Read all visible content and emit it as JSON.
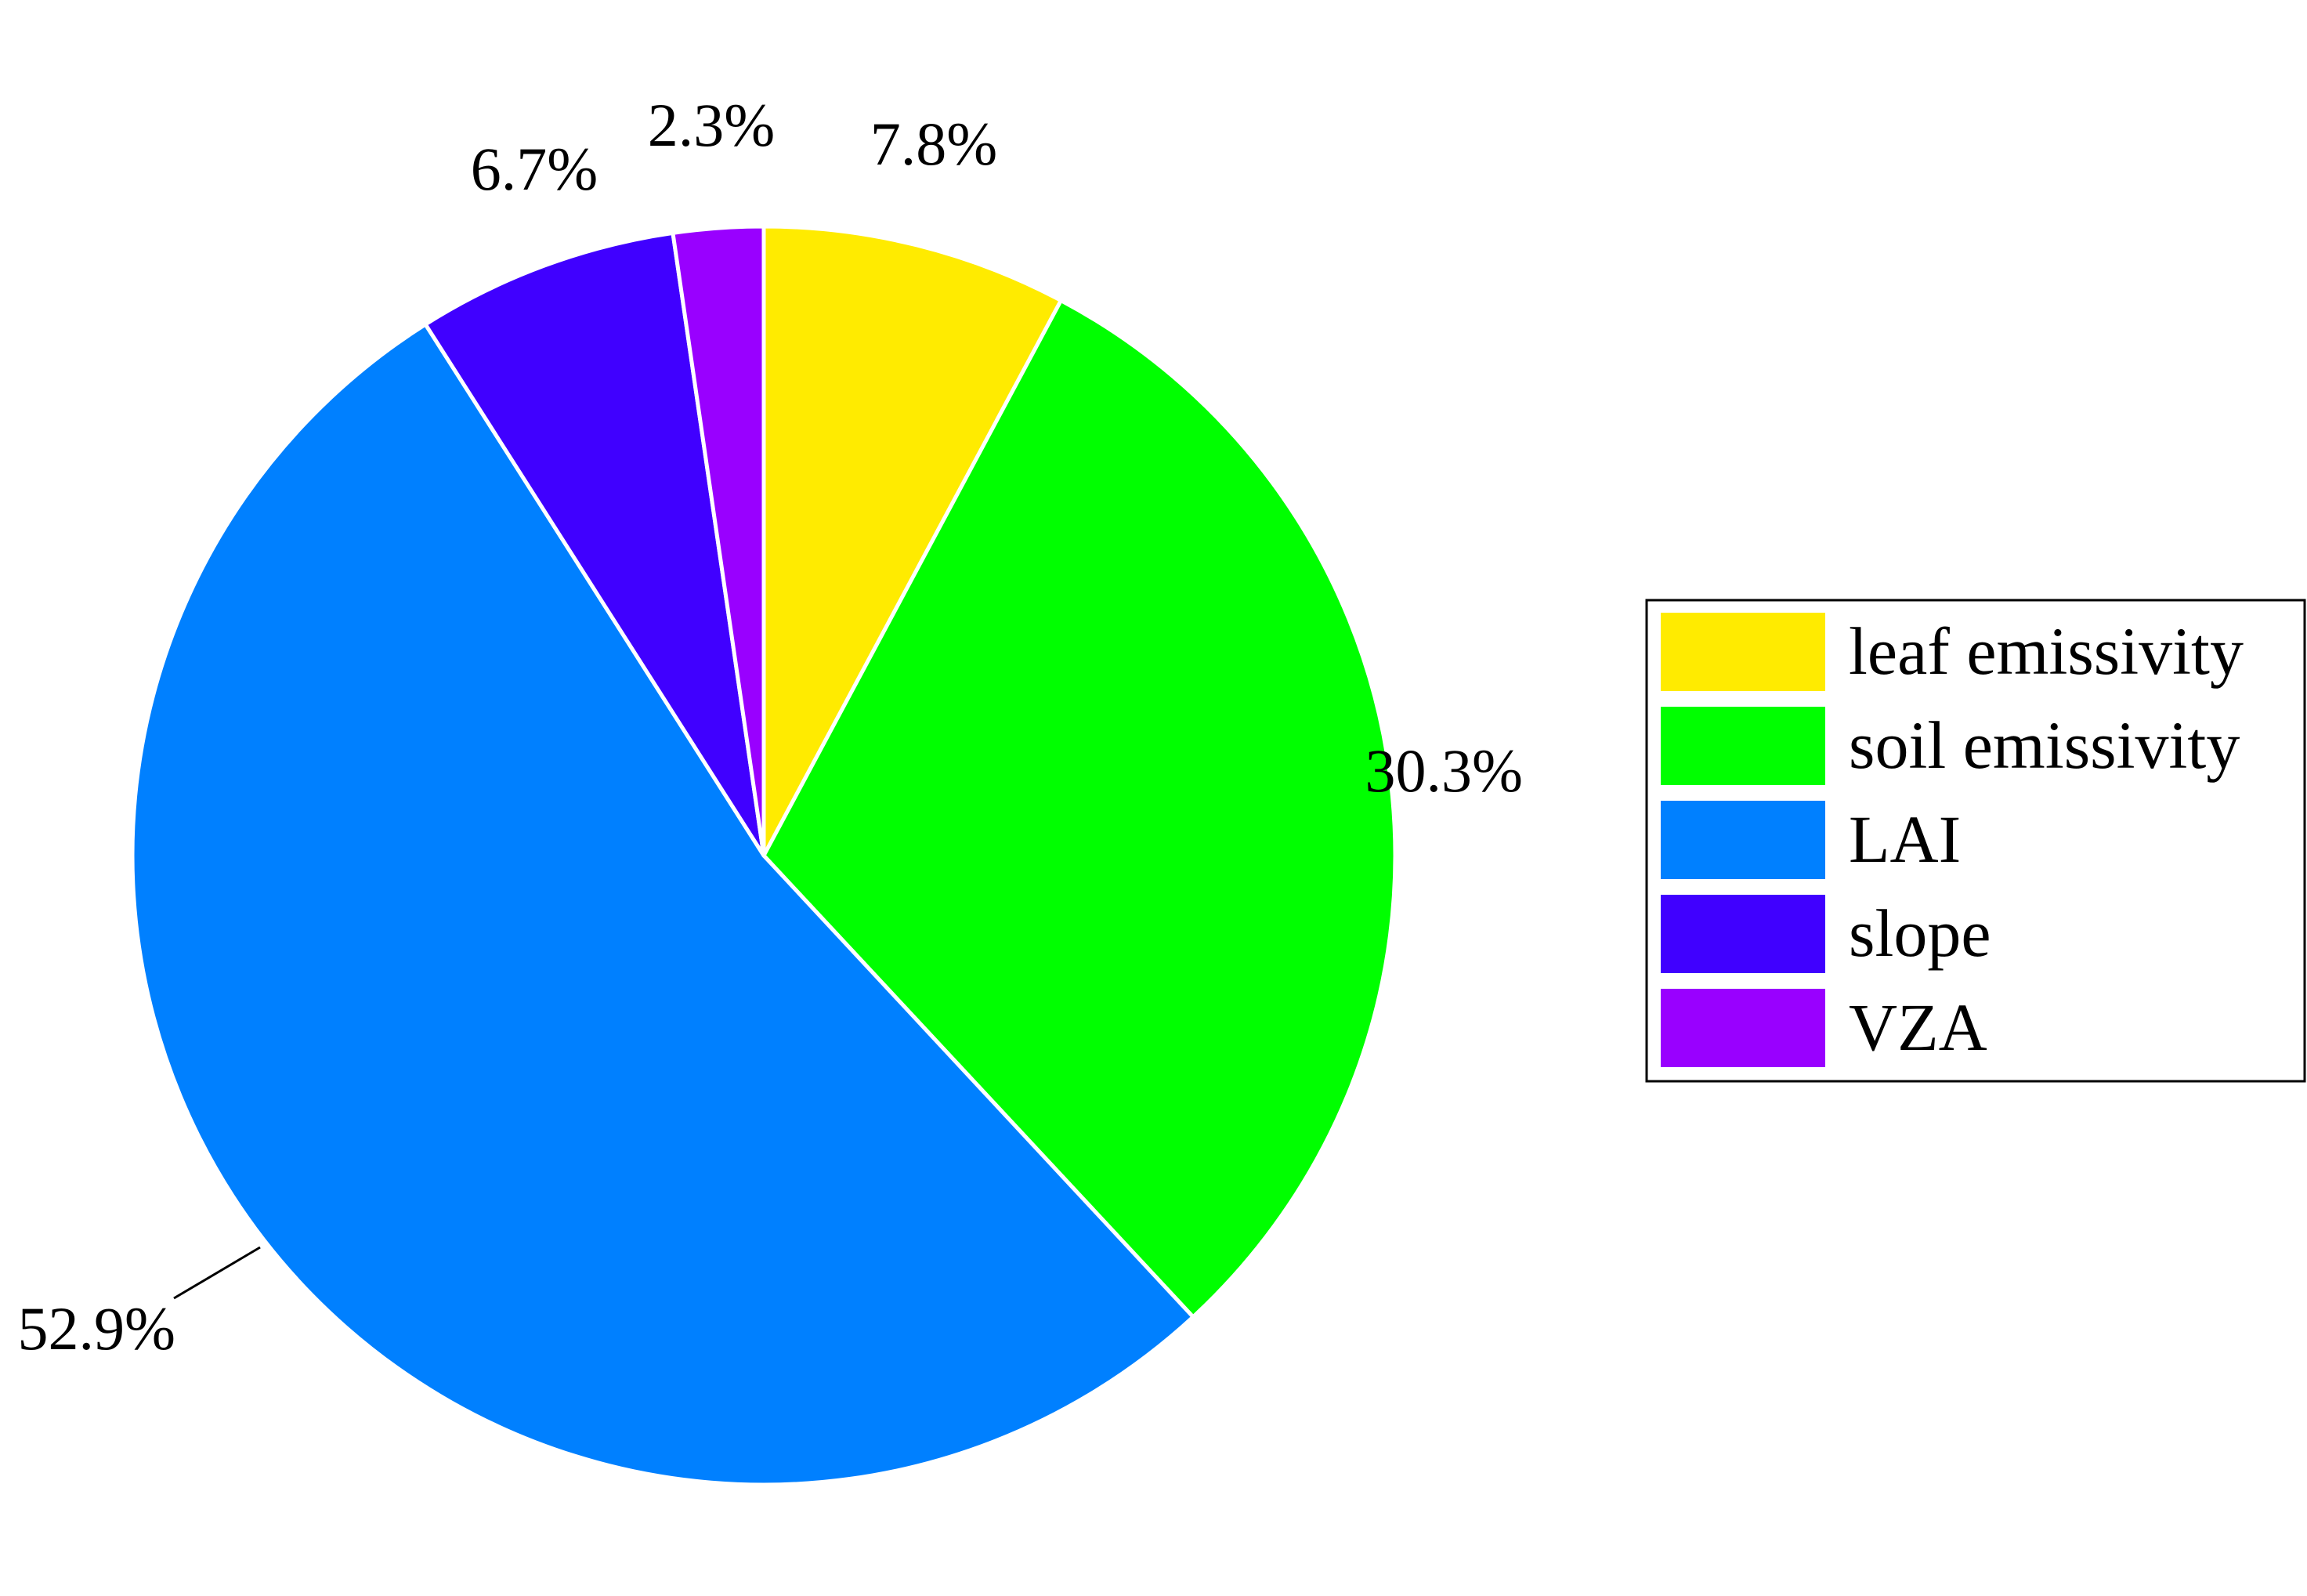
{
  "chart_data": {
    "type": "pie",
    "title": "",
    "slices": [
      {
        "label": "leaf emissivity",
        "value": 7.8,
        "display": "7.8%",
        "color": "#FFEB00"
      },
      {
        "label": "soil emissivity",
        "value": 30.3,
        "display": "30.3%",
        "color": "#00FF00"
      },
      {
        "label": "LAI",
        "value": 52.9,
        "display": "52.9%",
        "color": "#0080FF"
      },
      {
        "label": "slope",
        "value": 6.7,
        "display": "6.7%",
        "color": "#4000FF"
      },
      {
        "label": "VZA",
        "value": 2.3,
        "display": "2.3%",
        "color": "#9900FF"
      }
    ],
    "start_angle": "12 o'clock",
    "direction": "clockwise",
    "legend_position": "right"
  }
}
